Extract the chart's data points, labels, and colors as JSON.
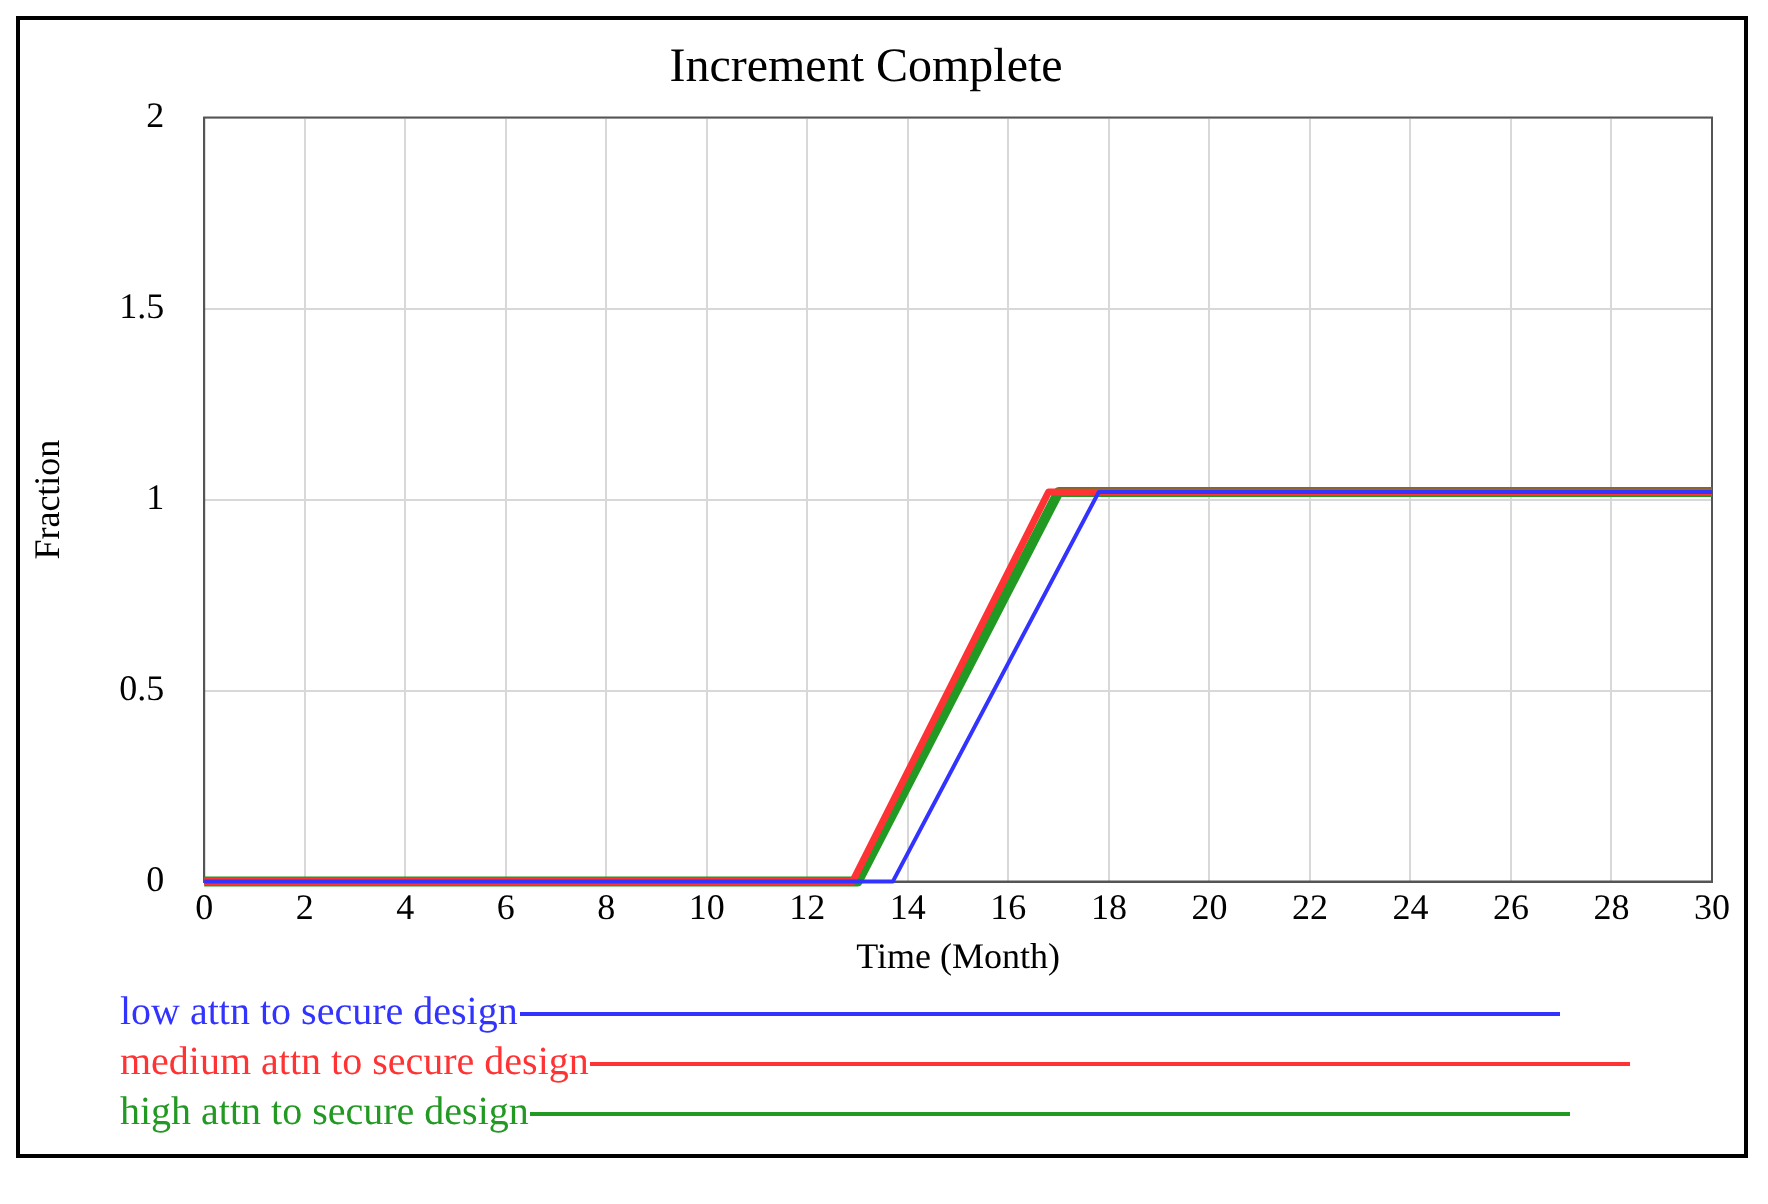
{
  "chart_data": {
    "type": "line",
    "title": "Increment Complete",
    "xlabel": "Time (Month)",
    "ylabel": "Fraction",
    "xlim": [
      0,
      30
    ],
    "xticks": [
      0,
      2,
      4,
      6,
      8,
      10,
      12,
      14,
      16,
      18,
      20,
      22,
      24,
      26,
      28,
      30
    ],
    "ylim": [
      0,
      2
    ],
    "yticks": [
      0,
      0.5,
      1,
      1.5,
      2
    ],
    "grid": true,
    "legend": "bottom",
    "line_style": "solid",
    "series": [
      {
        "name": "low attn to secure design",
        "color": "#3333ff",
        "x": [
          0,
          13.7,
          17.8,
          30
        ],
        "values": [
          0,
          0,
          1.02,
          1.02
        ]
      },
      {
        "name": "medium attn to secure design",
        "color": "#ff3333",
        "x": [
          0,
          12.9,
          16.8,
          30
        ],
        "values": [
          0,
          0,
          1.02,
          1.02
        ]
      },
      {
        "name": "high attn to secure design",
        "color": "#229922",
        "x": [
          0,
          13,
          17,
          30
        ],
        "values": [
          0,
          0,
          1.02,
          1.02
        ]
      }
    ]
  }
}
